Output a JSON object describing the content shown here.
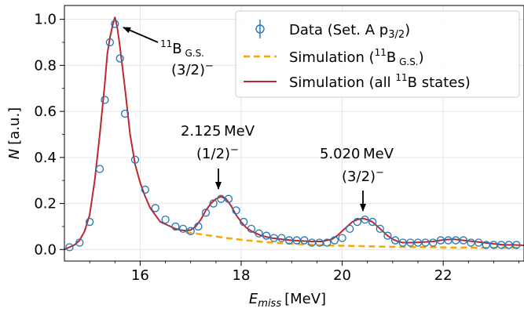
{
  "chart_data": {
    "type": "line",
    "xlabel": "E",
    "xlabel_sub": "miss",
    "xlabel_unit": "[MeV]",
    "ylabel": "N",
    "ylabel_unit": "[a.u.]",
    "xlim": [
      14.5,
      23.6
    ],
    "ylim": [
      -0.05,
      1.06
    ],
    "xticks": [
      16,
      18,
      20,
      22
    ],
    "yticks": [
      0.0,
      0.2,
      0.4,
      0.6,
      0.8,
      1.0
    ],
    "xtick_labels": [
      "16",
      "18",
      "20",
      "22"
    ],
    "ytick_labels": [
      "0.0",
      "0.2",
      "0.4",
      "0.6",
      "0.8",
      "1.0"
    ],
    "grid": true,
    "legend_position": "top-right",
    "legend": [
      {
        "label": "Data (Set. A p",
        "label_sub": "3/2",
        "label_end": ")",
        "color": "#1f77b4",
        "style": "marker"
      },
      {
        "label": "Simulation (",
        "label_sup": "11",
        "label_mid": "B",
        "label_sub": " G.S.",
        "label_end": ")",
        "color": "#ffa500",
        "style": "dashed"
      },
      {
        "label": "Simulation (all ",
        "label_sup": "11",
        "label_mid": "B states)",
        "color": "#c0262d",
        "style": "solid"
      }
    ],
    "annotations": [
      {
        "sup": "11",
        "main": "B",
        "sub": " G.S.",
        "line2": "(3/2)",
        "line2_sup": "−"
      },
      {
        "line1": "2.125 MeV",
        "line2": "(1/2)",
        "line2_sup": "−"
      },
      {
        "line1": "5.020 MeV",
        "line2": "(3/2)",
        "line2_sup": "−"
      }
    ],
    "series": [
      {
        "name": "Data (Set. A p3/2)",
        "x": [
          14.6,
          14.8,
          15.0,
          15.2,
          15.3,
          15.4,
          15.5,
          15.6,
          15.7,
          15.9,
          16.1,
          16.3,
          16.5,
          16.7,
          16.85,
          17.0,
          17.15,
          17.3,
          17.45,
          17.6,
          17.75,
          17.9,
          18.05,
          18.2,
          18.35,
          18.5,
          18.65,
          18.8,
          18.95,
          19.1,
          19.25,
          19.4,
          19.55,
          19.7,
          19.85,
          20.0,
          20.15,
          20.3,
          20.45,
          20.6,
          20.75,
          20.9,
          21.05,
          21.2,
          21.35,
          21.5,
          21.65,
          21.8,
          21.95,
          22.1,
          22.25,
          22.4,
          22.55,
          22.7,
          22.85,
          23.0,
          23.15,
          23.3,
          23.45
        ],
        "y": [
          0.01,
          0.03,
          0.12,
          0.35,
          0.65,
          0.9,
          0.98,
          0.83,
          0.59,
          0.39,
          0.26,
          0.18,
          0.13,
          0.1,
          0.09,
          0.08,
          0.1,
          0.16,
          0.2,
          0.22,
          0.22,
          0.17,
          0.12,
          0.09,
          0.07,
          0.06,
          0.05,
          0.05,
          0.04,
          0.04,
          0.04,
          0.03,
          0.03,
          0.03,
          0.04,
          0.05,
          0.09,
          0.12,
          0.13,
          0.12,
          0.09,
          0.06,
          0.04,
          0.03,
          0.03,
          0.03,
          0.03,
          0.03,
          0.04,
          0.04,
          0.04,
          0.04,
          0.03,
          0.03,
          0.02,
          0.02,
          0.02,
          0.02,
          0.02
        ]
      },
      {
        "name": "Simulation (11B G.S.)",
        "x": [
          16.9,
          17.1,
          17.3,
          17.5,
          17.7,
          17.9,
          18.1,
          18.3,
          18.5,
          18.7,
          18.9,
          19.1,
          19.3,
          19.5,
          19.7,
          19.9,
          20.1,
          20.3,
          20.5,
          20.7,
          20.9,
          21.1,
          21.3,
          21.5,
          21.7,
          21.9,
          22.1,
          22.3,
          22.5,
          22.7,
          22.9,
          23.1,
          23.3,
          23.55
        ],
        "y": [
          0.075,
          0.07,
          0.063,
          0.057,
          0.05,
          0.045,
          0.04,
          0.036,
          0.032,
          0.029,
          0.026,
          0.024,
          0.022,
          0.02,
          0.018,
          0.017,
          0.016,
          0.015,
          0.014,
          0.013,
          0.012,
          0.012,
          0.011,
          0.011,
          0.01,
          0.01,
          0.009,
          0.009,
          0.009,
          0.008,
          0.008,
          0.008,
          0.008,
          0.008
        ]
      },
      {
        "name": "Simulation (all 11B states)",
        "x": [
          14.5,
          14.6,
          14.7,
          14.8,
          14.9,
          15.0,
          15.1,
          15.2,
          15.3,
          15.35,
          15.4,
          15.45,
          15.5,
          15.55,
          15.6,
          15.7,
          15.8,
          15.9,
          16.0,
          16.1,
          16.2,
          16.3,
          16.4,
          16.5,
          16.6,
          16.7,
          16.8,
          16.9,
          17.0,
          17.1,
          17.2,
          17.3,
          17.4,
          17.5,
          17.6,
          17.7,
          17.8,
          17.9,
          18.0,
          18.1,
          18.2,
          18.3,
          18.4,
          18.5,
          18.6,
          18.8,
          19.0,
          19.2,
          19.4,
          19.6,
          19.8,
          19.9,
          20.0,
          20.1,
          20.2,
          20.3,
          20.4,
          20.5,
          20.6,
          20.7,
          20.8,
          20.9,
          21.0,
          21.1,
          21.2,
          21.4,
          21.6,
          21.8,
          22.0,
          22.2,
          22.4,
          22.6,
          22.8,
          23.0,
          23.2,
          23.4,
          23.6
        ],
        "y": [
          0.0,
          0.01,
          0.02,
          0.04,
          0.08,
          0.15,
          0.3,
          0.5,
          0.72,
          0.85,
          0.92,
          0.97,
          1.01,
          0.96,
          0.88,
          0.7,
          0.5,
          0.37,
          0.29,
          0.23,
          0.18,
          0.15,
          0.12,
          0.11,
          0.1,
          0.09,
          0.085,
          0.082,
          0.085,
          0.1,
          0.13,
          0.17,
          0.2,
          0.22,
          0.23,
          0.22,
          0.19,
          0.15,
          0.12,
          0.095,
          0.08,
          0.07,
          0.06,
          0.055,
          0.05,
          0.045,
          0.04,
          0.037,
          0.035,
          0.035,
          0.045,
          0.06,
          0.08,
          0.1,
          0.12,
          0.13,
          0.135,
          0.13,
          0.12,
          0.1,
          0.08,
          0.06,
          0.045,
          0.035,
          0.03,
          0.03,
          0.032,
          0.035,
          0.042,
          0.045,
          0.04,
          0.035,
          0.03,
          0.025,
          0.02,
          0.02,
          0.018
        ]
      }
    ],
    "colors": {
      "data": "#1f77b4",
      "sim_gs": "#ffa500",
      "sim_all": "#c0262d",
      "grid": "#e6e6e6"
    }
  }
}
